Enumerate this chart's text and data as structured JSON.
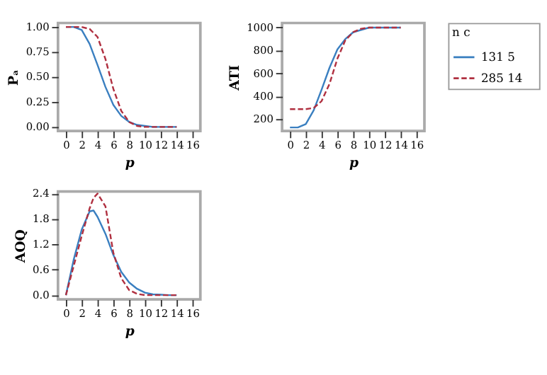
{
  "chart_data": [
    {
      "type": "line",
      "xlabel": "p",
      "ylabel": "Pₐ",
      "x": [
        0,
        1,
        2,
        3,
        4,
        5,
        6,
        7,
        8,
        9,
        10,
        11,
        12,
        13,
        14
      ],
      "xlim": [
        -1,
        17
      ],
      "xticks": [
        0,
        2,
        4,
        6,
        8,
        10,
        12,
        14,
        16
      ],
      "ylim": [
        -0.04,
        1.04
      ],
      "yticks": [
        {
          "value": 0,
          "label": "0.00"
        },
        {
          "value": 0.25,
          "label": "0.25"
        },
        {
          "value": 0.5,
          "label": "0.50"
        },
        {
          "value": 0.75,
          "label": "0.75"
        },
        {
          "value": 1,
          "label": "1.00"
        }
      ],
      "grid": false,
      "legend": false,
      "series": [
        {
          "color": "#3a7fc0",
          "line_style": "solid",
          "values": [
            1.0,
            1.0,
            0.97,
            0.83,
            0.62,
            0.4,
            0.22,
            0.11,
            0.05,
            0.02,
            0.01,
            0,
            0,
            0,
            0
          ]
        },
        {
          "color": "#b03040",
          "line_style": "dashed",
          "values": [
            1,
            1,
            1,
            0.98,
            0.9,
            0.68,
            0.38,
            0.16,
            0.05,
            0.01,
            0,
            0,
            0,
            0,
            0
          ]
        }
      ]
    },
    {
      "type": "line",
      "xlabel": "p",
      "ylabel": "ATI",
      "x": [
        0,
        1,
        2,
        3,
        4,
        5,
        6,
        7,
        8,
        9,
        10,
        11,
        12,
        13,
        14
      ],
      "xlim": [
        -1,
        17
      ],
      "xticks": [
        0,
        2,
        4,
        6,
        8,
        10,
        12,
        14,
        16
      ],
      "ylim": [
        100,
        1040
      ],
      "yticks": [
        200,
        400,
        600,
        800,
        {
          "value": 1000,
          "label": "1000"
        }
      ],
      "grid": false,
      "legend": "right",
      "legend_title": "n    c",
      "series": [
        {
          "name": "131    5",
          "color": "#3a7fc0",
          "line_style": "solid",
          "values": [
            130,
            130,
            160,
            280,
            460,
            650,
            810,
            900,
            960,
            980,
            1000,
            1000,
            1000,
            1000,
            1000
          ]
        },
        {
          "name": "285    14",
          "color": "#b03040",
          "line_style": "dashed",
          "values": [
            290,
            290,
            290,
            300,
            360,
            510,
            730,
            890,
            960,
            990,
            1000,
            1000,
            1000,
            1000,
            1000
          ]
        }
      ]
    },
    {
      "type": "line",
      "xlabel": "p",
      "ylabel": "AOQ",
      "x": [
        0,
        1,
        2,
        3,
        3.5,
        4,
        5,
        6,
        7,
        8,
        9,
        10,
        11,
        12,
        13,
        14
      ],
      "xlim": [
        -1,
        17
      ],
      "xticks": [
        0,
        2,
        4,
        6,
        8,
        10,
        12,
        14,
        16
      ],
      "ylim": [
        -0.1,
        2.45
      ],
      "yticks": [
        {
          "value": 0,
          "label": "0.0"
        },
        {
          "value": 0.6,
          "label": "0.6"
        },
        {
          "value": 1.2,
          "label": "1.2"
        },
        {
          "value": 1.8,
          "label": "1.8"
        },
        {
          "value": 2.4,
          "label": "2.4"
        }
      ],
      "grid": false,
      "legend": false,
      "series": [
        {
          "color": "#3a7fc0",
          "line_style": "solid",
          "values": [
            0,
            0.85,
            1.55,
            1.98,
            2.0,
            1.85,
            1.45,
            0.95,
            0.55,
            0.3,
            0.15,
            0.06,
            0.02,
            0.01,
            0,
            0
          ]
        },
        {
          "color": "#b03040",
          "line_style": "dashed",
          "values": [
            0,
            0.7,
            1.4,
            2.05,
            2.3,
            2.4,
            2.1,
            1.0,
            0.4,
            0.12,
            0.03,
            0,
            0,
            0,
            0,
            0
          ]
        }
      ]
    }
  ]
}
